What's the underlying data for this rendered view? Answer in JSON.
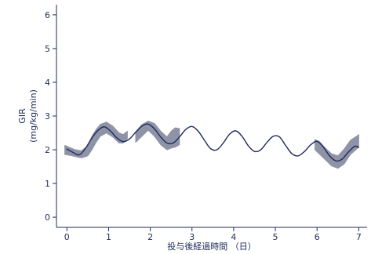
{
  "colors": {
    "axis": "#1f2d5a",
    "fit_line": "#1c2a5e",
    "observed_band": "#8f93a6"
  },
  "chart_data": {
    "type": "line",
    "title": "",
    "xlabel": "投与後経過時間 （日）",
    "ylabel_lines": [
      "GIR",
      "(mg/kg/min)"
    ],
    "xlim": [
      -0.25,
      7.2
    ],
    "ylim": [
      -0.3,
      6.3
    ],
    "x_ticks": [
      0,
      1,
      2,
      3,
      4,
      5,
      6,
      7
    ],
    "y_ticks": [
      0,
      1,
      2,
      3,
      4,
      5,
      6
    ],
    "grid": false,
    "legend": "none",
    "series": [
      {
        "kind": "line",
        "points": [
          [
            0,
            2.02
          ],
          [
            0.15,
            1.92
          ],
          [
            0.3,
            1.85
          ],
          [
            0.45,
            2.05
          ],
          [
            0.6,
            2.35
          ],
          [
            0.75,
            2.58
          ],
          [
            0.9,
            2.68
          ],
          [
            1.05,
            2.55
          ],
          [
            1.2,
            2.35
          ],
          [
            1.35,
            2.24
          ],
          [
            1.5,
            2.32
          ],
          [
            1.65,
            2.52
          ],
          [
            1.8,
            2.7
          ],
          [
            1.95,
            2.76
          ],
          [
            2.1,
            2.62
          ],
          [
            2.25,
            2.38
          ],
          [
            2.4,
            2.2
          ],
          [
            2.55,
            2.2
          ],
          [
            2.7,
            2.38
          ],
          [
            2.85,
            2.6
          ],
          [
            3.0,
            2.69
          ],
          [
            3.15,
            2.55
          ],
          [
            3.3,
            2.28
          ],
          [
            3.45,
            2.03
          ],
          [
            3.6,
            2.0
          ],
          [
            3.75,
            2.2
          ],
          [
            3.9,
            2.46
          ],
          [
            4.05,
            2.56
          ],
          [
            4.2,
            2.4
          ],
          [
            4.35,
            2.12
          ],
          [
            4.5,
            1.95
          ],
          [
            4.65,
            2.0
          ],
          [
            4.8,
            2.22
          ],
          [
            4.95,
            2.4
          ],
          [
            5.1,
            2.38
          ],
          [
            5.25,
            2.12
          ],
          [
            5.4,
            1.88
          ],
          [
            5.55,
            1.82
          ],
          [
            5.7,
            1.95
          ],
          [
            5.85,
            2.15
          ],
          [
            6.0,
            2.25
          ],
          [
            6.15,
            2.08
          ],
          [
            6.3,
            1.82
          ],
          [
            6.45,
            1.67
          ],
          [
            6.6,
            1.72
          ],
          [
            6.75,
            1.93
          ],
          [
            6.9,
            2.1
          ],
          [
            7.0,
            2.07
          ]
        ]
      },
      {
        "kind": "band",
        "segments": [
          {
            "upper": [
              [
                -0.05,
                2.13
              ],
              [
                0.1,
                2.05
              ],
              [
                0.2,
                2.0
              ],
              [
                0.35,
                1.97
              ],
              [
                0.5,
                2.12
              ],
              [
                0.6,
                2.4
              ],
              [
                0.7,
                2.6
              ],
              [
                0.8,
                2.75
              ],
              [
                0.95,
                2.82
              ],
              [
                1.1,
                2.7
              ],
              [
                1.25,
                2.5
              ],
              [
                1.35,
                2.45
              ],
              [
                1.45,
                2.55
              ]
            ],
            "lower": [
              [
                1.45,
                2.33
              ],
              [
                1.35,
                2.2
              ],
              [
                1.25,
                2.2
              ],
              [
                1.1,
                2.38
              ],
              [
                0.95,
                2.5
              ],
              [
                0.8,
                2.4
              ],
              [
                0.7,
                2.22
              ],
              [
                0.6,
                2.0
              ],
              [
                0.5,
                1.82
              ],
              [
                0.35,
                1.76
              ],
              [
                0.2,
                1.8
              ],
              [
                0.1,
                1.83
              ],
              [
                -0.05,
                1.86
              ]
            ]
          },
          {
            "upper": [
              [
                1.65,
                2.53
              ],
              [
                1.8,
                2.75
              ],
              [
                1.95,
                2.85
              ],
              [
                2.1,
                2.78
              ],
              [
                2.25,
                2.55
              ],
              [
                2.4,
                2.38
              ],
              [
                2.5,
                2.55
              ],
              [
                2.6,
                2.65
              ],
              [
                2.7,
                2.63
              ]
            ],
            "lower": [
              [
                2.7,
                2.15
              ],
              [
                2.6,
                2.08
              ],
              [
                2.5,
                2.05
              ],
              [
                2.4,
                2.0
              ],
              [
                2.25,
                2.15
              ],
              [
                2.1,
                2.4
              ],
              [
                1.95,
                2.58
              ],
              [
                1.8,
                2.4
              ],
              [
                1.65,
                2.22
              ]
            ]
          },
          {
            "upper": [
              [
                5.95,
                2.3
              ],
              [
                6.05,
                2.25
              ],
              [
                6.2,
                2.05
              ],
              [
                6.35,
                1.88
              ],
              [
                6.5,
                1.82
              ],
              [
                6.65,
                2.02
              ],
              [
                6.8,
                2.28
              ],
              [
                6.95,
                2.4
              ],
              [
                7.0,
                2.45
              ]
            ],
            "lower": [
              [
                7.0,
                2.08
              ],
              [
                6.95,
                2.02
              ],
              [
                6.8,
                1.86
              ],
              [
                6.65,
                1.58
              ],
              [
                6.5,
                1.45
              ],
              [
                6.35,
                1.52
              ],
              [
                6.2,
                1.7
              ],
              [
                6.05,
                1.88
              ],
              [
                5.95,
                2.0
              ]
            ]
          }
        ]
      }
    ]
  }
}
